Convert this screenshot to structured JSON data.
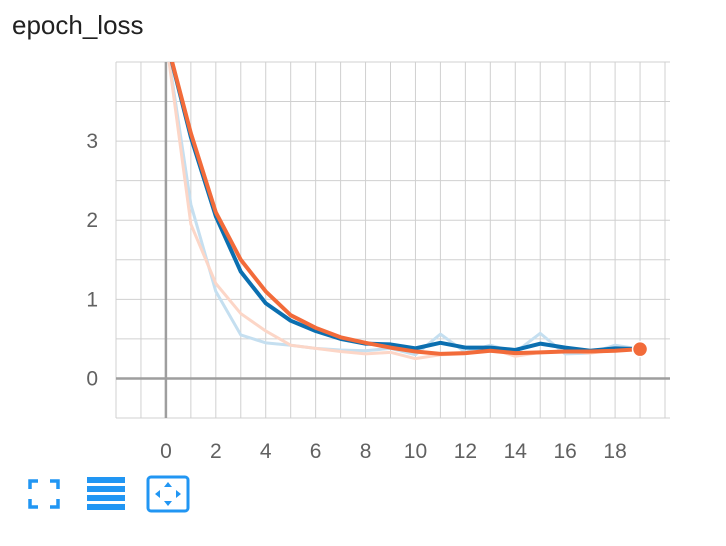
{
  "title": "epoch_loss",
  "colors": {
    "series_blue": "#0b6fb0",
    "series_blue_raw": "#c5dff0",
    "series_orange": "#f26b3a",
    "series_orange_raw": "#fcd6c7",
    "grid": "#d0d0d0",
    "axis": "#9e9e9e",
    "toolbar_icon": "#2196f3"
  },
  "toolbar": [
    {
      "name": "fullscreen-icon"
    },
    {
      "name": "toggle-data-list-icon"
    },
    {
      "name": "fit-domain-icon"
    }
  ],
  "chart_data": {
    "type": "line",
    "title": "epoch_loss",
    "xlabel": "",
    "ylabel": "",
    "xlim": [
      -2,
      20.2
    ],
    "ylim": [
      -0.5,
      4.0
    ],
    "grid": true,
    "x_ticks": [
      0,
      2,
      4,
      6,
      8,
      10,
      12,
      14,
      16,
      18
    ],
    "y_ticks": [
      0,
      1,
      2,
      3
    ],
    "x": [
      0,
      1,
      2,
      3,
      4,
      5,
      6,
      7,
      8,
      9,
      10,
      11,
      12,
      13,
      14,
      15,
      16,
      17,
      18,
      19
    ],
    "series": [
      {
        "color": "#0b6fb0",
        "raw_color": "#c5dff0",
        "smoothed": [
          4.3,
          3.05,
          2.05,
          1.35,
          0.95,
          0.73,
          0.6,
          0.5,
          0.44,
          0.43,
          0.38,
          0.45,
          0.39,
          0.39,
          0.36,
          0.44,
          0.39,
          0.35,
          0.38,
          0.37
        ],
        "raw": [
          4.3,
          2.2,
          1.1,
          0.55,
          0.45,
          0.42,
          0.38,
          0.36,
          0.35,
          0.38,
          0.3,
          0.56,
          0.33,
          0.42,
          0.33,
          0.57,
          0.31,
          0.32,
          0.42,
          0.37
        ]
      },
      {
        "color": "#f26b3a",
        "raw_color": "#fcd6c7",
        "smoothed": [
          4.3,
          3.1,
          2.1,
          1.5,
          1.1,
          0.8,
          0.64,
          0.52,
          0.45,
          0.39,
          0.34,
          0.31,
          0.32,
          0.35,
          0.32,
          0.33,
          0.34,
          0.34,
          0.35,
          0.37
        ],
        "raw": [
          4.3,
          1.95,
          1.2,
          0.82,
          0.6,
          0.42,
          0.38,
          0.34,
          0.31,
          0.33,
          0.25,
          0.3,
          0.31,
          0.38,
          0.28,
          0.33,
          0.35,
          0.32,
          0.36,
          0.37
        ]
      }
    ]
  }
}
